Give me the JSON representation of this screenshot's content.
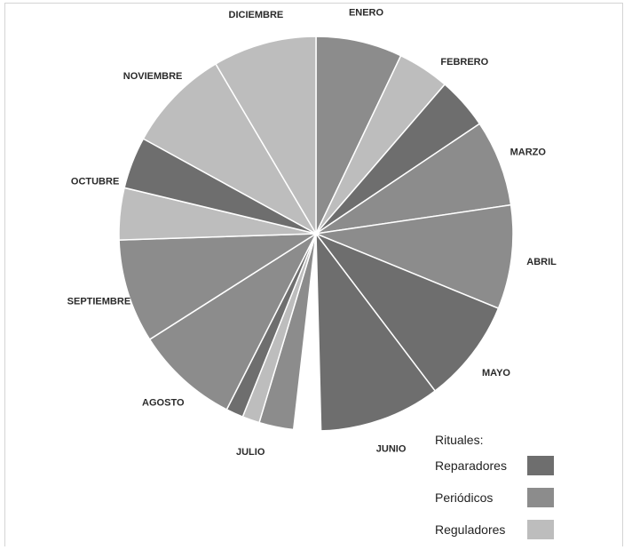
{
  "chart_data": {
    "type": "pie",
    "title": "",
    "categories": [
      "ENERO",
      "FEBRERO",
      "MARZO",
      "ABRIL",
      "MAYO",
      "JUNIO",
      "JULIO",
      "AGOSTO",
      "SEPTIEMBRE",
      "OCTUBRE",
      "NOVIEMBRE",
      "DICIEMBRE"
    ],
    "slices": [
      {
        "month": "ENERO",
        "ritual": "Periódicos",
        "value": 5
      },
      {
        "month": "FEBRERO",
        "ritual": "Reguladores",
        "value": 3
      },
      {
        "month": "FEBRERO",
        "ritual": "Reparadores",
        "value": 3
      },
      {
        "month": "MARZO",
        "ritual": "Periódicos",
        "value": 5
      },
      {
        "month": "ABRIL",
        "ritual": "Periódicos",
        "value": 6
      },
      {
        "month": "MAYO",
        "ritual": "Reparadores",
        "value": 6
      },
      {
        "month": "JUNIO",
        "ritual": "Reparadores",
        "value": 7
      },
      {
        "month": "JULIO",
        "ritual": "Periódicos",
        "value": 2
      },
      {
        "month": "JULIO",
        "ritual": "Reguladores",
        "value": 1
      },
      {
        "month": "JULIO",
        "ritual": "Reparadores",
        "value": 1
      },
      {
        "month": "AGOSTO",
        "ritual": "Periódicos",
        "value": 6
      },
      {
        "month": "SEPTIEMBRE",
        "ritual": "Periódicos",
        "value": 6
      },
      {
        "month": "OCTUBRE",
        "ritual": "Reguladores",
        "value": 3
      },
      {
        "month": "OCTUBRE",
        "ritual": "Reparadores",
        "value": 3
      },
      {
        "month": "NOVIEMBRE",
        "ritual": "Reguladores",
        "value": 6
      },
      {
        "month": "DICIEMBRE",
        "ritual": "Reguladores",
        "value": 6
      }
    ],
    "gap_after": "JUNIO",
    "legend": {
      "title": "Rituales:",
      "position": "bottom-right",
      "entries": [
        {
          "name": "Reparadores",
          "color": "#6e6e6e"
        },
        {
          "name": "Periódicos",
          "color": "#8c8c8c"
        },
        {
          "name": "Reguladores",
          "color": "#bdbdbd"
        }
      ]
    }
  }
}
